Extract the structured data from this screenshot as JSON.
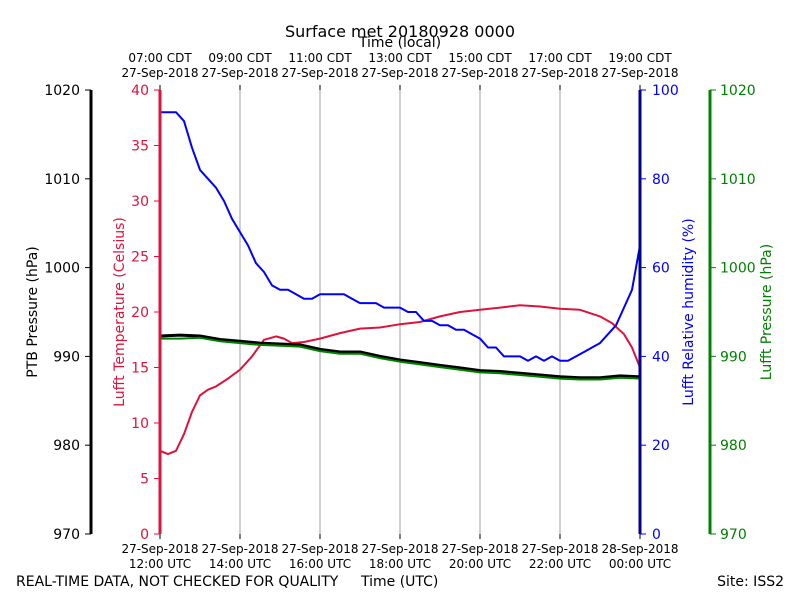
{
  "chart_data": {
    "type": "line",
    "title": "Surface met 20180928 0000",
    "top_axis": {
      "label": "Time (local)",
      "ticks": [
        {
          "time": "07:00 CDT",
          "date": "27-Sep-2018"
        },
        {
          "time": "09:00 CDT",
          "date": "27-Sep-2018"
        },
        {
          "time": "11:00 CDT",
          "date": "27-Sep-2018"
        },
        {
          "time": "13:00 CDT",
          "date": "27-Sep-2018"
        },
        {
          "time": "15:00 CDT",
          "date": "27-Sep-2018"
        },
        {
          "time": "17:00 CDT",
          "date": "27-Sep-2018"
        },
        {
          "time": "19:00 CDT",
          "date": "27-Sep-2018"
        }
      ]
    },
    "x_axis": {
      "label": "Time (UTC)",
      "range_hours_utc": [
        12,
        24
      ],
      "ticks": [
        {
          "date": "27-Sep-2018",
          "time": "12:00 UTC"
        },
        {
          "date": "27-Sep-2018",
          "time": "14:00 UTC"
        },
        {
          "date": "27-Sep-2018",
          "time": "16:00 UTC"
        },
        {
          "date": "27-Sep-2018",
          "time": "18:00 UTC"
        },
        {
          "date": "27-Sep-2018",
          "time": "20:00 UTC"
        },
        {
          "date": "27-Sep-2018",
          "time": "22:00 UTC"
        },
        {
          "date": "28-Sep-2018",
          "time": "00:00 UTC"
        }
      ]
    },
    "axes": {
      "ptb_pressure": {
        "label": "PTB Pressure (hPa)",
        "range": [
          970,
          1020
        ],
        "ticks": [
          "1020",
          "1010",
          "1000",
          "990",
          "980",
          "970"
        ],
        "color": "#000000"
      },
      "temperature": {
        "label": "Lufft Temperature (Celsius)",
        "range": [
          0,
          40
        ],
        "ticks": [
          "40",
          "35",
          "30",
          "25",
          "20",
          "15",
          "10",
          "5",
          "0"
        ],
        "color": "#dc143c"
      },
      "humidity": {
        "label": "Lufft Relative humidity (%)",
        "range": [
          0,
          100
        ],
        "ticks": [
          "100",
          "80",
          "60",
          "40",
          "20",
          "0"
        ],
        "color": "#0000ff"
      },
      "lufft_pressure": {
        "label": "Lufft Pressure (hPa)",
        "range": [
          970,
          1020
        ],
        "ticks": [
          "1020",
          "1010",
          "1000",
          "990",
          "980",
          "970"
        ],
        "color": "#008000"
      }
    },
    "series": [
      {
        "name": "Lufft Temperature",
        "axis": "temperature",
        "color": "#dc143c",
        "x": [
          12.0,
          12.2,
          12.4,
          12.6,
          12.8,
          13.0,
          13.2,
          13.4,
          13.7,
          14.0,
          14.3,
          14.6,
          14.9,
          15.1,
          15.3,
          15.6,
          16.0,
          16.5,
          17.0,
          17.5,
          18.0,
          18.5,
          19.0,
          19.5,
          20.0,
          20.5,
          21.0,
          21.5,
          22.0,
          22.5,
          23.0,
          23.3,
          23.6,
          23.8,
          24.0
        ],
        "values": [
          7.5,
          7.2,
          7.5,
          9.0,
          11.0,
          12.5,
          13.0,
          13.3,
          14.0,
          14.8,
          16.0,
          17.5,
          17.8,
          17.6,
          17.2,
          17.3,
          17.6,
          18.1,
          18.5,
          18.6,
          18.9,
          19.1,
          19.6,
          20.0,
          20.2,
          20.4,
          20.6,
          20.5,
          20.3,
          20.2,
          19.6,
          19.0,
          18.0,
          16.8,
          15.0
        ]
      },
      {
        "name": "Lufft Relative humidity",
        "axis": "humidity",
        "color": "#0000ff",
        "x": [
          12.0,
          12.2,
          12.4,
          12.6,
          12.8,
          13.0,
          13.2,
          13.4,
          13.6,
          13.8,
          14.0,
          14.2,
          14.4,
          14.6,
          14.8,
          15.0,
          15.2,
          15.4,
          15.6,
          15.8,
          16.0,
          16.2,
          16.4,
          16.6,
          16.8,
          17.0,
          17.2,
          17.4,
          17.6,
          17.8,
          18.0,
          18.2,
          18.4,
          18.6,
          18.8,
          19.0,
          19.2,
          19.4,
          19.6,
          19.8,
          20.0,
          20.2,
          20.4,
          20.6,
          20.8,
          21.0,
          21.2,
          21.4,
          21.6,
          21.8,
          22.0,
          22.2,
          22.4,
          22.6,
          22.8,
          23.0,
          23.2,
          23.4,
          23.6,
          23.8,
          23.9,
          24.0
        ],
        "values": [
          95,
          95,
          95,
          93,
          87,
          82,
          80,
          78,
          75,
          71,
          68,
          65,
          61,
          59,
          56,
          55,
          55,
          54,
          53,
          53,
          54,
          54,
          54,
          54,
          53,
          52,
          52,
          52,
          51,
          51,
          51,
          50,
          50,
          48,
          48,
          47,
          47,
          46,
          46,
          45,
          44,
          42,
          42,
          40,
          40,
          40,
          39,
          40,
          39,
          40,
          39,
          39,
          40,
          41,
          42,
          43,
          45,
          47,
          51,
          55,
          60,
          65
        ]
      },
      {
        "name": "PTB Pressure",
        "axis": "ptb_pressure",
        "color": "#000000",
        "x": [
          12.0,
          12.5,
          13.0,
          13.5,
          14.0,
          14.5,
          15.0,
          15.5,
          16.0,
          16.5,
          17.0,
          17.5,
          18.0,
          18.5,
          19.0,
          19.5,
          20.0,
          20.5,
          21.0,
          21.5,
          22.0,
          22.5,
          23.0,
          23.5,
          24.0
        ],
        "values": [
          992.3,
          992.4,
          992.3,
          991.9,
          991.7,
          991.5,
          991.4,
          991.3,
          990.8,
          990.5,
          990.5,
          990.0,
          989.6,
          989.3,
          989.0,
          988.7,
          988.4,
          988.3,
          988.1,
          987.9,
          987.7,
          987.6,
          987.6,
          987.8,
          987.7
        ]
      },
      {
        "name": "Lufft Pressure",
        "axis": "lufft_pressure",
        "color": "#008000",
        "x": [
          12.0,
          12.5,
          13.0,
          13.5,
          14.0,
          14.5,
          15.0,
          15.5,
          16.0,
          16.5,
          17.0,
          17.5,
          18.0,
          18.5,
          19.0,
          19.5,
          20.0,
          20.5,
          21.0,
          21.5,
          22.0,
          22.5,
          23.0,
          23.5,
          24.0
        ],
        "values": [
          992.0,
          992.0,
          992.1,
          991.7,
          991.5,
          991.3,
          991.2,
          991.1,
          990.6,
          990.3,
          990.3,
          989.8,
          989.4,
          989.1,
          988.8,
          988.5,
          988.2,
          988.1,
          987.9,
          987.7,
          987.5,
          987.4,
          987.4,
          987.6,
          987.5
        ]
      }
    ]
  },
  "footer": {
    "disclaimer": "REAL-TIME DATA, NOT CHECKED FOR QUALITY",
    "xlabel": "Time (UTC)",
    "site": "Site: ISS2"
  }
}
